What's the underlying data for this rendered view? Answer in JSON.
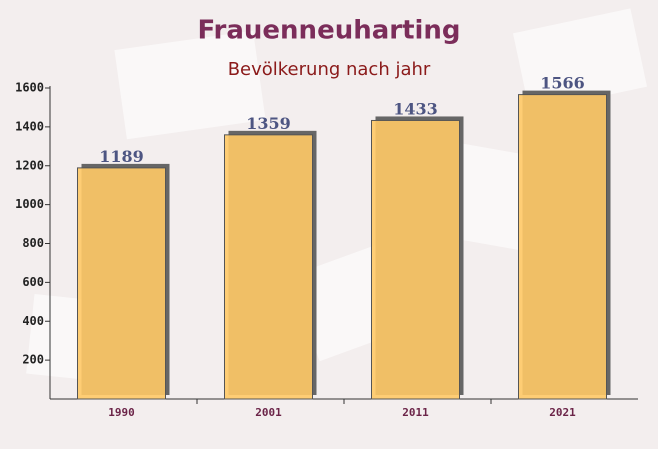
{
  "chart_data": {
    "type": "bar",
    "title": "Frauenneuharting",
    "subtitle": "Bevölkerung nach jahr",
    "categories": [
      "1990",
      "2001",
      "2011",
      "2021"
    ],
    "values": [
      1189,
      1359,
      1433,
      1566
    ],
    "color": "#ffc966",
    "ylim": [
      0,
      1600
    ],
    "yticks": [
      200,
      400,
      600,
      800,
      1000,
      1200,
      1400,
      1600
    ]
  }
}
